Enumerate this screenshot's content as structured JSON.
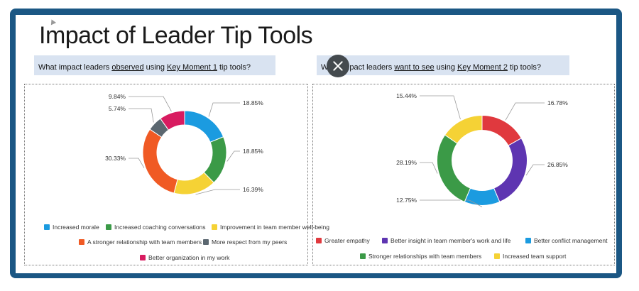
{
  "title": "Impact of Leader Tip Tools",
  "questions": {
    "q1": {
      "pre": "What impact leaders ",
      "u1": "observed",
      "mid": " using ",
      "u2": "Key Moment 1",
      "post": " tip tools?"
    },
    "q2": {
      "pre": "What impact leaders ",
      "u1": "want to see",
      "mid": " using ",
      "u2": "Key Moment 2",
      "post": " tip tools?"
    }
  },
  "close_icon": "close-icon",
  "chart_data": [
    {
      "type": "pie",
      "style": "donut",
      "categories": [
        "Increased morale",
        "Increased coaching conversations",
        "Improvement in team member well-being",
        "A stronger relationship with team members",
        "More respect from my peers",
        "Better organization in my work"
      ],
      "values": [
        18.85,
        18.85,
        16.39,
        30.33,
        5.74,
        9.84
      ],
      "labels": [
        "18.85%",
        "18.85%",
        "16.39%",
        "30.33%",
        "5.74%",
        "9.84%"
      ],
      "colors": [
        "#1b9be0",
        "#3b9a47",
        "#f5d235",
        "#f05a24",
        "#5b6770",
        "#d81b60"
      ],
      "legend": "bottom"
    },
    {
      "type": "pie",
      "style": "donut",
      "categories": [
        "Greater empathy",
        "Better insight in team member's work and life",
        "Better conflict management",
        "Stronger relationships with team members",
        "Increased team support"
      ],
      "values": [
        16.78,
        26.85,
        12.75,
        28.19,
        15.44
      ],
      "labels": [
        "16.78%",
        "26.85%",
        "12.75%",
        "28.19%",
        "15.44%"
      ],
      "colors": [
        "#e0393e",
        "#5e35b1",
        "#1b9be0",
        "#3b9a47",
        "#f5d235"
      ],
      "legend": "bottom"
    }
  ]
}
